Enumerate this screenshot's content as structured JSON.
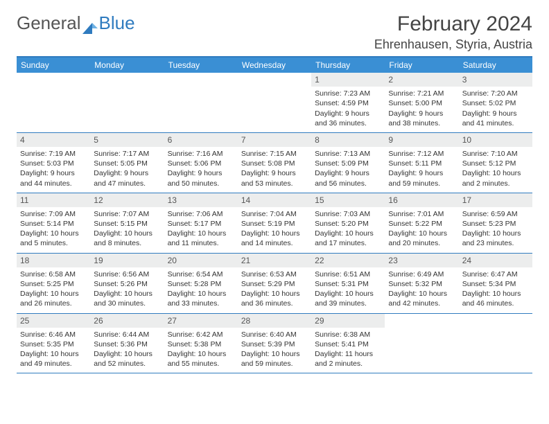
{
  "brand": {
    "word1": "General",
    "word2": "Blue"
  },
  "title": "February 2024",
  "location": "Ehrenhausen, Styria, Austria",
  "colors": {
    "header_bg": "#3a8fd4",
    "rule": "#2f7bbf",
    "daynum_bg": "#eceded",
    "text": "#333333",
    "page_bg": "#ffffff"
  },
  "weekdays": [
    "Sunday",
    "Monday",
    "Tuesday",
    "Wednesday",
    "Thursday",
    "Friday",
    "Saturday"
  ],
  "weeks": [
    [
      null,
      null,
      null,
      null,
      {
        "n": "1",
        "sr": "Sunrise: 7:23 AM",
        "ss": "Sunset: 4:59 PM",
        "dl": "Daylight: 9 hours and 36 minutes."
      },
      {
        "n": "2",
        "sr": "Sunrise: 7:21 AM",
        "ss": "Sunset: 5:00 PM",
        "dl": "Daylight: 9 hours and 38 minutes."
      },
      {
        "n": "3",
        "sr": "Sunrise: 7:20 AM",
        "ss": "Sunset: 5:02 PM",
        "dl": "Daylight: 9 hours and 41 minutes."
      }
    ],
    [
      {
        "n": "4",
        "sr": "Sunrise: 7:19 AM",
        "ss": "Sunset: 5:03 PM",
        "dl": "Daylight: 9 hours and 44 minutes."
      },
      {
        "n": "5",
        "sr": "Sunrise: 7:17 AM",
        "ss": "Sunset: 5:05 PM",
        "dl": "Daylight: 9 hours and 47 minutes."
      },
      {
        "n": "6",
        "sr": "Sunrise: 7:16 AM",
        "ss": "Sunset: 5:06 PM",
        "dl": "Daylight: 9 hours and 50 minutes."
      },
      {
        "n": "7",
        "sr": "Sunrise: 7:15 AM",
        "ss": "Sunset: 5:08 PM",
        "dl": "Daylight: 9 hours and 53 minutes."
      },
      {
        "n": "8",
        "sr": "Sunrise: 7:13 AM",
        "ss": "Sunset: 5:09 PM",
        "dl": "Daylight: 9 hours and 56 minutes."
      },
      {
        "n": "9",
        "sr": "Sunrise: 7:12 AM",
        "ss": "Sunset: 5:11 PM",
        "dl": "Daylight: 9 hours and 59 minutes."
      },
      {
        "n": "10",
        "sr": "Sunrise: 7:10 AM",
        "ss": "Sunset: 5:12 PM",
        "dl": "Daylight: 10 hours and 2 minutes."
      }
    ],
    [
      {
        "n": "11",
        "sr": "Sunrise: 7:09 AM",
        "ss": "Sunset: 5:14 PM",
        "dl": "Daylight: 10 hours and 5 minutes."
      },
      {
        "n": "12",
        "sr": "Sunrise: 7:07 AM",
        "ss": "Sunset: 5:15 PM",
        "dl": "Daylight: 10 hours and 8 minutes."
      },
      {
        "n": "13",
        "sr": "Sunrise: 7:06 AM",
        "ss": "Sunset: 5:17 PM",
        "dl": "Daylight: 10 hours and 11 minutes."
      },
      {
        "n": "14",
        "sr": "Sunrise: 7:04 AM",
        "ss": "Sunset: 5:19 PM",
        "dl": "Daylight: 10 hours and 14 minutes."
      },
      {
        "n": "15",
        "sr": "Sunrise: 7:03 AM",
        "ss": "Sunset: 5:20 PM",
        "dl": "Daylight: 10 hours and 17 minutes."
      },
      {
        "n": "16",
        "sr": "Sunrise: 7:01 AM",
        "ss": "Sunset: 5:22 PM",
        "dl": "Daylight: 10 hours and 20 minutes."
      },
      {
        "n": "17",
        "sr": "Sunrise: 6:59 AM",
        "ss": "Sunset: 5:23 PM",
        "dl": "Daylight: 10 hours and 23 minutes."
      }
    ],
    [
      {
        "n": "18",
        "sr": "Sunrise: 6:58 AM",
        "ss": "Sunset: 5:25 PM",
        "dl": "Daylight: 10 hours and 26 minutes."
      },
      {
        "n": "19",
        "sr": "Sunrise: 6:56 AM",
        "ss": "Sunset: 5:26 PM",
        "dl": "Daylight: 10 hours and 30 minutes."
      },
      {
        "n": "20",
        "sr": "Sunrise: 6:54 AM",
        "ss": "Sunset: 5:28 PM",
        "dl": "Daylight: 10 hours and 33 minutes."
      },
      {
        "n": "21",
        "sr": "Sunrise: 6:53 AM",
        "ss": "Sunset: 5:29 PM",
        "dl": "Daylight: 10 hours and 36 minutes."
      },
      {
        "n": "22",
        "sr": "Sunrise: 6:51 AM",
        "ss": "Sunset: 5:31 PM",
        "dl": "Daylight: 10 hours and 39 minutes."
      },
      {
        "n": "23",
        "sr": "Sunrise: 6:49 AM",
        "ss": "Sunset: 5:32 PM",
        "dl": "Daylight: 10 hours and 42 minutes."
      },
      {
        "n": "24",
        "sr": "Sunrise: 6:47 AM",
        "ss": "Sunset: 5:34 PM",
        "dl": "Daylight: 10 hours and 46 minutes."
      }
    ],
    [
      {
        "n": "25",
        "sr": "Sunrise: 6:46 AM",
        "ss": "Sunset: 5:35 PM",
        "dl": "Daylight: 10 hours and 49 minutes."
      },
      {
        "n": "26",
        "sr": "Sunrise: 6:44 AM",
        "ss": "Sunset: 5:36 PM",
        "dl": "Daylight: 10 hours and 52 minutes."
      },
      {
        "n": "27",
        "sr": "Sunrise: 6:42 AM",
        "ss": "Sunset: 5:38 PM",
        "dl": "Daylight: 10 hours and 55 minutes."
      },
      {
        "n": "28",
        "sr": "Sunrise: 6:40 AM",
        "ss": "Sunset: 5:39 PM",
        "dl": "Daylight: 10 hours and 59 minutes."
      },
      {
        "n": "29",
        "sr": "Sunrise: 6:38 AM",
        "ss": "Sunset: 5:41 PM",
        "dl": "Daylight: 11 hours and 2 minutes."
      },
      null,
      null
    ]
  ]
}
